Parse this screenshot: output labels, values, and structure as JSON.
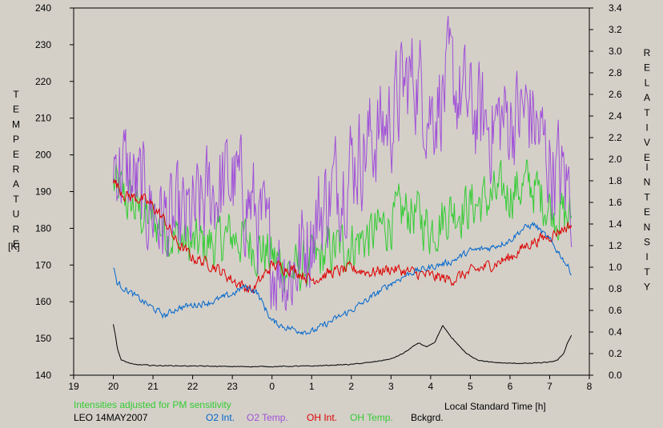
{
  "chart_data": {
    "type": "line",
    "x_axis": {
      "label": "Local Standard Time [h]",
      "range": [
        19,
        32
      ],
      "ticks": [
        19,
        20,
        21,
        22,
        23,
        24,
        25,
        26,
        27,
        28,
        29,
        30,
        31,
        32
      ],
      "tick_labels": [
        "19",
        "20",
        "21",
        "22",
        "23",
        "0",
        "1",
        "2",
        "3",
        "4",
        "5",
        "6",
        "7",
        "8"
      ]
    },
    "y_left": {
      "label_letters": [
        "T",
        "E",
        "M",
        "P",
        "E",
        "R",
        "A",
        "T",
        "U",
        "R",
        "E"
      ],
      "unit": "[K]",
      "range": [
        140,
        240
      ],
      "ticks": [
        140,
        150,
        160,
        170,
        180,
        190,
        200,
        210,
        220,
        230,
        240
      ],
      "tick_labels": [
        "140",
        "150",
        "160",
        "170",
        "180",
        "190",
        "200",
        "210",
        "220",
        "230",
        "240"
      ]
    },
    "y_right": {
      "label_letters_1": [
        "R",
        "E",
        "L",
        "A",
        "T",
        "I",
        "V",
        "E"
      ],
      "label_letters_2": [
        "I",
        "N",
        "T",
        "E",
        "N",
        "S",
        "I",
        "T",
        "Y"
      ],
      "range": [
        0,
        3.4
      ],
      "ticks": [
        0,
        0.2,
        0.4,
        0.6,
        0.8,
        1.0,
        1.2,
        1.4,
        1.6,
        1.8,
        2.0,
        2.2,
        2.4,
        2.6,
        2.8,
        3.0,
        3.2,
        3.4
      ],
      "tick_labels": [
        "0.0",
        "0.2",
        "0.4",
        "0.6",
        "0.8",
        "1.0",
        "1.2",
        "1.4",
        "1.6",
        "1.8",
        "2.0",
        "2.2",
        "2.4",
        "2.6",
        "2.8",
        "3.0",
        "3.2",
        "3.4"
      ]
    },
    "note": "Intensities adjusted for PM sensitivity",
    "station": "LEO 14MAY2007",
    "grid": false,
    "series": [
      {
        "name": "O2 Int.",
        "axis": "right",
        "color": "#0066cc",
        "noise": 0.03,
        "x": [
          20.0,
          20.1,
          20.3,
          20.6,
          21.0,
          21.3,
          21.6,
          22.0,
          22.5,
          23.0,
          23.3,
          23.6,
          24.0,
          24.3,
          24.6,
          25.0,
          25.5,
          26.0,
          26.5,
          27.0,
          27.5,
          28.0,
          28.5,
          29.0,
          29.5,
          30.0,
          30.3,
          30.6,
          31.0,
          31.3,
          31.55
        ],
        "y": [
          1.0,
          0.85,
          0.8,
          0.72,
          0.62,
          0.55,
          0.62,
          0.65,
          0.68,
          0.75,
          0.82,
          0.78,
          0.5,
          0.45,
          0.42,
          0.4,
          0.5,
          0.6,
          0.72,
          0.85,
          0.95,
          1.0,
          1.05,
          1.15,
          1.18,
          1.25,
          1.35,
          1.4,
          1.25,
          1.1,
          0.95
        ]
      },
      {
        "name": "O2 Temp.",
        "axis": "left",
        "color": "#a050d8",
        "noise": 14,
        "x": [
          20.0,
          20.5,
          21.0,
          21.5,
          22.0,
          22.5,
          23.0,
          23.5,
          24.0,
          24.5,
          25.0,
          25.5,
          26.0,
          26.5,
          27.0,
          27.3,
          27.6,
          28.0,
          28.5,
          29.0,
          29.5,
          30.0,
          30.5,
          31.0,
          31.55
        ],
        "y": [
          200,
          192,
          185,
          180,
          182,
          190,
          193,
          186,
          172,
          168,
          180,
          190,
          198,
          204,
          210,
          218,
          222,
          212,
          220,
          212,
          208,
          210,
          212,
          198,
          190
        ]
      },
      {
        "name": "OH Int.",
        "axis": "left",
        "color": "#dd0000",
        "noise": 1.6,
        "x": [
          20.0,
          20.3,
          20.7,
          21.0,
          21.3,
          21.6,
          22.0,
          22.5,
          23.0,
          23.5,
          24.0,
          24.5,
          25.0,
          25.5,
          26.0,
          26.5,
          27.0,
          27.5,
          28.0,
          28.5,
          29.0,
          29.5,
          30.0,
          30.5,
          31.0,
          31.55
        ],
        "y": [
          193,
          189,
          188,
          186,
          182,
          176,
          172,
          170,
          166,
          163,
          170,
          169,
          166,
          168,
          169,
          168,
          169,
          168,
          167,
          166,
          168,
          170,
          172,
          176,
          178,
          181
        ]
      },
      {
        "name": "OH Temp.",
        "axis": "left",
        "color": "#33cc33",
        "noise": 7,
        "x": [
          20.0,
          20.3,
          20.7,
          21.0,
          21.5,
          22.0,
          22.5,
          23.0,
          23.5,
          24.0,
          24.5,
          25.0,
          25.5,
          26.0,
          26.5,
          27.0,
          27.5,
          28.0,
          28.5,
          29.0,
          29.5,
          30.0,
          30.5,
          31.0,
          31.55
        ],
        "y": [
          192,
          188,
          184,
          182,
          178,
          175,
          176,
          178,
          176,
          172,
          168,
          170,
          174,
          176,
          178,
          182,
          185,
          180,
          185,
          186,
          188,
          190,
          192,
          186,
          182
        ]
      },
      {
        "name": "Bckgrd.",
        "axis": "right",
        "color": "#000000",
        "noise": 0.004,
        "x": [
          20.0,
          20.05,
          20.1,
          20.2,
          20.5,
          21.0,
          22.0,
          23.0,
          24.0,
          25.0,
          26.0,
          26.5,
          27.0,
          27.3,
          27.5,
          27.7,
          27.9,
          28.1,
          28.2,
          28.3,
          28.5,
          28.7,
          28.9,
          29.2,
          29.5,
          30.0,
          30.5,
          31.0,
          31.2,
          31.35,
          31.45,
          31.55
        ],
        "y": [
          0.47,
          0.38,
          0.25,
          0.14,
          0.1,
          0.09,
          0.085,
          0.08,
          0.08,
          0.085,
          0.1,
          0.12,
          0.15,
          0.2,
          0.25,
          0.3,
          0.26,
          0.3,
          0.38,
          0.46,
          0.36,
          0.28,
          0.2,
          0.14,
          0.12,
          0.11,
          0.11,
          0.12,
          0.14,
          0.2,
          0.3,
          0.37
        ]
      }
    ]
  }
}
